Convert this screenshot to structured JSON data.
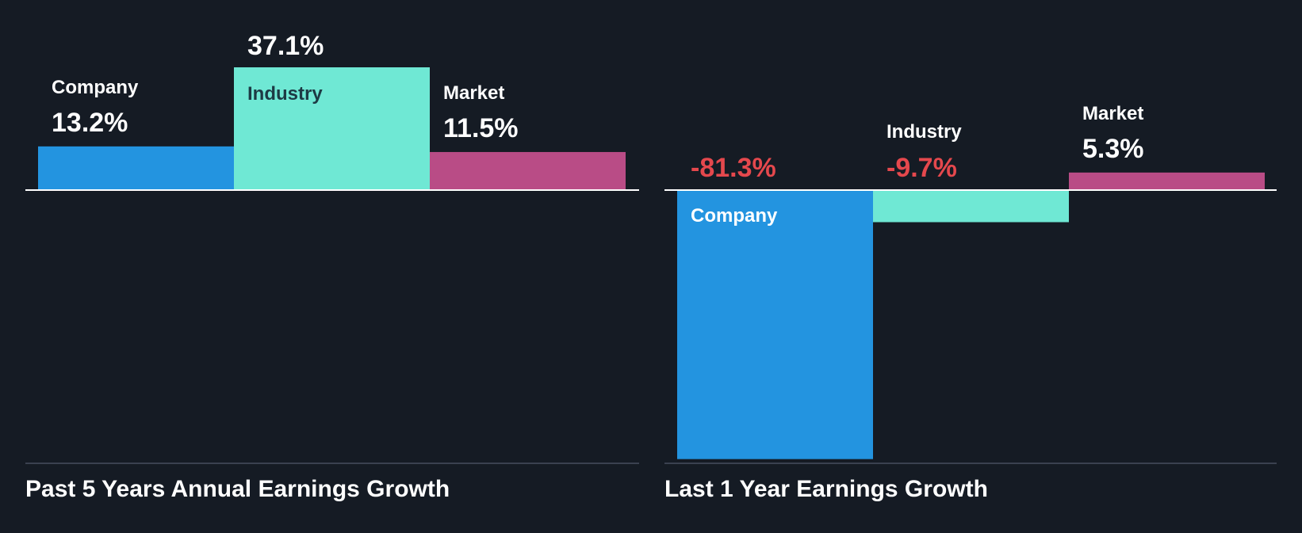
{
  "colors": {
    "background": "#151b24",
    "company": "#2394e0",
    "industry": "#6fe8d4",
    "market": "#b94c86",
    "positive_text": "#ffffff",
    "negative_text": "#e5484d",
    "baseline": "#ffffff",
    "bottom_rule": "#3a4150"
  },
  "chart_data": [
    {
      "type": "bar",
      "title": "Past 5 Years Annual Earnings Growth",
      "categories": [
        "Company",
        "Industry",
        "Market"
      ],
      "values": [
        13.2,
        37.1,
        11.5
      ],
      "value_labels": [
        "13.2%",
        "37.1%",
        "11.5%"
      ],
      "unit": "%",
      "ylim": [
        -89.3,
        37.1
      ],
      "grid": false,
      "legend": "none"
    },
    {
      "type": "bar",
      "title": "Last 1 Year Earnings Growth",
      "categories": [
        "Company",
        "Industry",
        "Market"
      ],
      "values": [
        -81.3,
        -9.7,
        5.3
      ],
      "value_labels": [
        "-81.3%",
        "-9.7%",
        "5.3%"
      ],
      "unit": "%",
      "ylim": [
        -81.3,
        5.3
      ],
      "grid": false,
      "legend": "none"
    }
  ]
}
